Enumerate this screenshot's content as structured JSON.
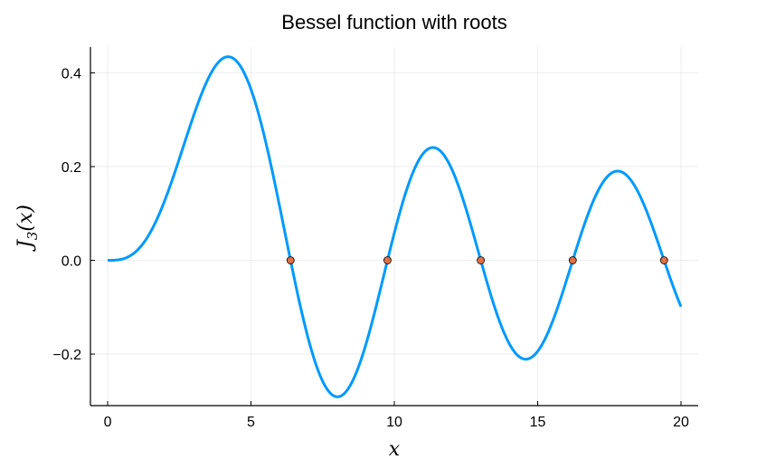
{
  "chart_data": {
    "type": "line",
    "title": "Bessel function with roots",
    "xlabel": "x",
    "ylabel": "J_3(x)",
    "ylabel_parts": {
      "base": "J",
      "sub": "3",
      "arg": "(x)"
    },
    "xlim": [
      -0.6,
      20.6
    ],
    "ylim": [
      -0.31,
      0.455
    ],
    "xticks": [
      0,
      5,
      10,
      15,
      20
    ],
    "xtick_labels": [
      "0",
      "5",
      "10",
      "15",
      "20"
    ],
    "yticks": [
      -0.2,
      0.0,
      0.2,
      0.4
    ],
    "ytick_labels": [
      "−0.2",
      "0.0",
      "0.2",
      "0.4"
    ],
    "grid": true,
    "legend": "none",
    "series": [
      {
        "kind": "line",
        "function": "besselj",
        "order": 3,
        "x_range": [
          0,
          20
        ],
        "color": "#009AFA"
      },
      {
        "kind": "scatter",
        "x": [
          6.3802,
          9.761,
          13.0152,
          16.2235,
          19.4094
        ],
        "y": [
          0,
          0,
          0,
          0,
          0
        ],
        "color": "#E26F46"
      }
    ]
  }
}
